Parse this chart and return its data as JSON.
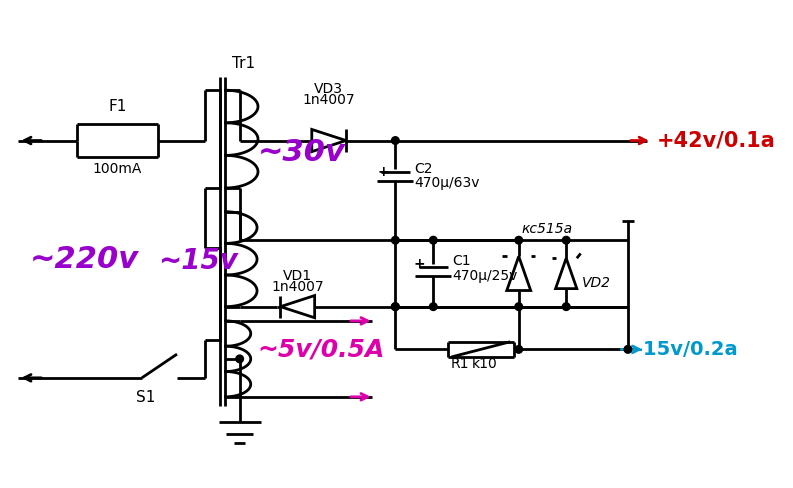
{
  "bg_color": "#ffffff",
  "line_color": "#000000",
  "purple_color": "#9900cc",
  "red_color": "#cc0000",
  "magenta_color": "#dd00aa",
  "cyan_color": "#0099cc",
  "figsize": [
    7.93,
    4.88
  ],
  "labels": {
    "F1": "F1",
    "100mA": "100mA",
    "Tr1": "Tr1",
    "VD3": "VD3",
    "1n4007_top": "1n4007",
    "tilde_30v": "~30v",
    "tilde_220v": "~220v",
    "tilde_15v": "~15v",
    "VD1": "VD1",
    "1n4007_bot": "1n4007",
    "C2": "C2",
    "470u63v": "470μ/63v",
    "plus42": "+42v/0.1a",
    "C1": "C1",
    "470u25v": "470μ/25v",
    "kc515a": "кc515a",
    "VD2": "VD2",
    "R1": "R1",
    "k10": "k10",
    "minus15": "-15v/0.2a",
    "tilde_5v": "~5v/0.5A",
    "S1": "S1"
  }
}
